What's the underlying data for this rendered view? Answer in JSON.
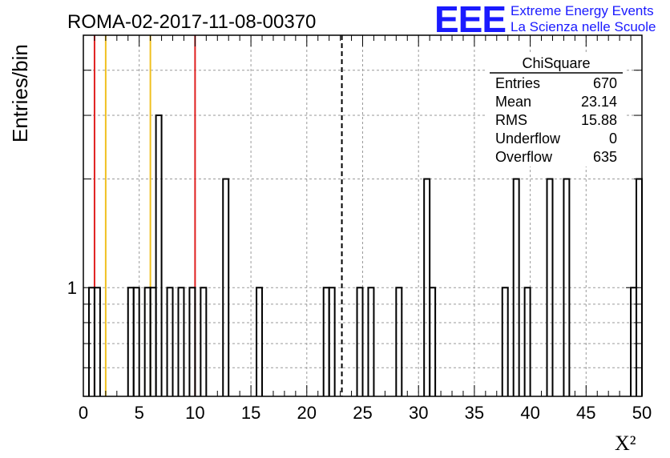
{
  "header": {
    "title": "ROMA-02-2017-11-08-00370",
    "logo": "EEE",
    "logo_line1": "Extreme Energy Events",
    "logo_line2": "La Scienza nelle Scuole"
  },
  "stats": {
    "title": "ChiSquare",
    "rows": [
      {
        "label": "Entries",
        "value": "670"
      },
      {
        "label": "Mean",
        "value": "23.14"
      },
      {
        "label": "RMS",
        "value": "15.88"
      },
      {
        "label": "Underflow",
        "value": "0"
      },
      {
        "label": "Overflow",
        "value": "635"
      }
    ]
  },
  "chart_data": {
    "type": "bar",
    "title": "ROMA-02-2017-11-08-00370",
    "xlabel": "X²",
    "ylabel": "Entries/bin",
    "xlim": [
      0,
      50
    ],
    "ylim": [
      0.5,
      5
    ],
    "log_y": true,
    "grid": true,
    "bin_width": 0.5,
    "bins": [
      {
        "x": 0.5,
        "value": 1
      },
      {
        "x": 1.0,
        "value": 1
      },
      {
        "x": 4.0,
        "value": 1
      },
      {
        "x": 4.5,
        "value": 1
      },
      {
        "x": 5.5,
        "value": 1
      },
      {
        "x": 6.0,
        "value": 1
      },
      {
        "x": 6.5,
        "value": 3
      },
      {
        "x": 7.5,
        "value": 1
      },
      {
        "x": 8.5,
        "value": 1
      },
      {
        "x": 9.5,
        "value": 1
      },
      {
        "x": 10.5,
        "value": 1
      },
      {
        "x": 12.5,
        "value": 2
      },
      {
        "x": 15.5,
        "value": 1
      },
      {
        "x": 21.5,
        "value": 1
      },
      {
        "x": 22.0,
        "value": 1
      },
      {
        "x": 24.5,
        "value": 1
      },
      {
        "x": 25.5,
        "value": 1
      },
      {
        "x": 28.0,
        "value": 1
      },
      {
        "x": 30.5,
        "value": 2
      },
      {
        "x": 31.0,
        "value": 1
      },
      {
        "x": 37.5,
        "value": 1
      },
      {
        "x": 38.5,
        "value": 2
      },
      {
        "x": 39.5,
        "value": 1
      },
      {
        "x": 41.5,
        "value": 2
      },
      {
        "x": 43.0,
        "value": 2
      },
      {
        "x": 49.0,
        "value": 1
      },
      {
        "x": 49.5,
        "value": 2
      }
    ],
    "x_ticks": [
      0,
      5,
      10,
      15,
      20,
      25,
      30,
      35,
      40,
      45,
      50
    ],
    "x_tick_labels": [
      "0",
      "5",
      "10",
      "15",
      "20",
      "25",
      "30",
      "35",
      "40",
      "45",
      "50"
    ],
    "y_tick_labels": [
      {
        "value": 1,
        "label": "1"
      }
    ],
    "y_minor_ticks": [
      0.6,
      0.7,
      0.8,
      0.9,
      2,
      3,
      4
    ],
    "vertical_lines": [
      {
        "x": 1.0,
        "color": "#e02020",
        "style": "solid"
      },
      {
        "x": 2.0,
        "color": "#f0c020",
        "style": "solid"
      },
      {
        "x": 6.0,
        "color": "#f0c020",
        "style": "solid"
      },
      {
        "x": 10.0,
        "color": "#e02020",
        "style": "solid"
      },
      {
        "x": 23.14,
        "color": "#000000",
        "style": "dashed"
      }
    ]
  }
}
